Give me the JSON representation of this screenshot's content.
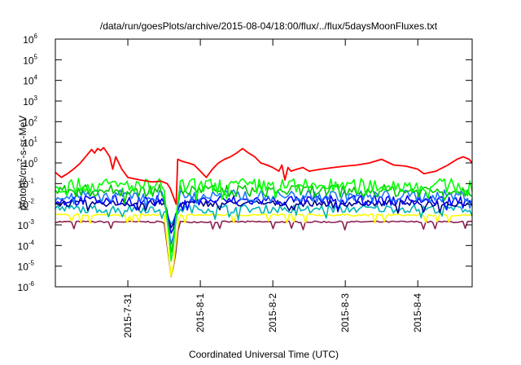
{
  "chart_data": {
    "type": "line",
    "title": "/data/run/goesPlots/archive/2015-08-04/18:00/flux/../flux/5daysMoonFluxes.txt",
    "xlabel": "Coordinated Universal Time (UTC)",
    "ylabel": {
      "prefix": "protons/cm",
      "sup": "2",
      "suffix": "-s-sr-MeV"
    },
    "y_scale": "log",
    "ylim": [
      1e-06,
      1000000.0
    ],
    "y_ticks": [
      {
        "value": 1e-06,
        "base": "10",
        "exp": "-6"
      },
      {
        "value": 1e-05,
        "base": "10",
        "exp": "-5"
      },
      {
        "value": 0.0001,
        "base": "10",
        "exp": "-4"
      },
      {
        "value": 0.001,
        "base": "10",
        "exp": "-3"
      },
      {
        "value": 0.01,
        "base": "10",
        "exp": "-2"
      },
      {
        "value": 0.1,
        "base": "10",
        "exp": "-1"
      },
      {
        "value": 1,
        "base": "10",
        "exp": "0"
      },
      {
        "value": 10,
        "base": "10",
        "exp": "1"
      },
      {
        "value": 100,
        "base": "10",
        "exp": "2"
      },
      {
        "value": 1000,
        "base": "10",
        "exp": "3"
      },
      {
        "value": 10000,
        "base": "10",
        "exp": "4"
      },
      {
        "value": 100000,
        "base": "10",
        "exp": "5"
      },
      {
        "value": 1000000,
        "base": "10",
        "exp": "6"
      }
    ],
    "xlim": [
      "2015-07-30T00:00",
      "2015-08-04T18:00"
    ],
    "x_ticks": [
      {
        "value": "2015-07-31T00:00",
        "label": "2015-7-31"
      },
      {
        "value": "2015-08-01T00:00",
        "label": "2015-8-1"
      },
      {
        "value": "2015-08-02T00:00",
        "label": "2015-8-2"
      },
      {
        "value": "2015-08-03T00:00",
        "label": "2015-8-3"
      },
      {
        "value": "2015-08-04T00:00",
        "label": "2015-8-4"
      }
    ],
    "grid": false,
    "legend": "none",
    "dip": {
      "x": "2015-07-31T14:30",
      "min": [
        1e-05,
        3e-05,
        8e-05,
        0.0003,
        0.0006,
        0.001,
        2e-06
      ]
    },
    "series": [
      {
        "color": "#ff0000",
        "values": [
          [
            "2015-07-30T00:00",
            0.35
          ],
          [
            "2015-07-30T02:00",
            0.2
          ],
          [
            "2015-07-30T04:00",
            0.3
          ],
          [
            "2015-07-30T06:00",
            0.5
          ],
          [
            "2015-07-30T08:00",
            0.9
          ],
          [
            "2015-07-30T10:00",
            2.0
          ],
          [
            "2015-07-30T12:00",
            4.5
          ],
          [
            "2015-07-30T13:00",
            3.0
          ],
          [
            "2015-07-30T14:00",
            5.0
          ],
          [
            "2015-07-30T15:00",
            4.0
          ],
          [
            "2015-07-30T16:00",
            5.5
          ],
          [
            "2015-07-30T18:00",
            2.0
          ],
          [
            "2015-07-30T19:00",
            0.5
          ],
          [
            "2015-07-30T20:00",
            2.0
          ],
          [
            "2015-07-30T22:00",
            0.5
          ],
          [
            "2015-07-31T00:00",
            0.2
          ],
          [
            "2015-07-31T04:00",
            0.15
          ],
          [
            "2015-07-31T08:00",
            0.12
          ],
          [
            "2015-07-31T11:00",
            0.13
          ],
          [
            "2015-07-31T13:00",
            0.1
          ],
          [
            "2015-07-31T14:00",
            0.06
          ],
          [
            "2015-07-31T16:00",
            0.01
          ],
          [
            "2015-07-31T16:30",
            1.5
          ],
          [
            "2015-07-31T18:00",
            1.2
          ],
          [
            "2015-07-31T20:00",
            1.0
          ],
          [
            "2015-07-31T22:00",
            0.8
          ],
          [
            "2015-08-01T00:00",
            0.4
          ],
          [
            "2015-08-01T02:00",
            0.2
          ],
          [
            "2015-08-01T04:00",
            0.5
          ],
          [
            "2015-08-01T06:00",
            1.0
          ],
          [
            "2015-08-01T08:00",
            1.5
          ],
          [
            "2015-08-01T10:00",
            2.0
          ],
          [
            "2015-08-01T12:00",
            3.0
          ],
          [
            "2015-08-01T14:00",
            5.0
          ],
          [
            "2015-08-01T16:00",
            3.0
          ],
          [
            "2015-08-01T18:00",
            2.0
          ],
          [
            "2015-08-01T20:00",
            1.0
          ],
          [
            "2015-08-01T22:00",
            0.8
          ],
          [
            "2015-08-02T00:00",
            0.6
          ],
          [
            "2015-08-02T02:00",
            0.4
          ],
          [
            "2015-08-02T03:00",
            0.8
          ],
          [
            "2015-08-02T04:00",
            0.15
          ],
          [
            "2015-08-02T05:00",
            0.6
          ],
          [
            "2015-08-02T06:00",
            0.4
          ],
          [
            "2015-08-02T08:00",
            0.5
          ],
          [
            "2015-08-02T10:00",
            0.6
          ],
          [
            "2015-08-02T12:00",
            0.4
          ],
          [
            "2015-08-02T16:00",
            0.5
          ],
          [
            "2015-08-02T20:00",
            0.6
          ],
          [
            "2015-08-03T00:00",
            0.7
          ],
          [
            "2015-08-03T04:00",
            0.8
          ],
          [
            "2015-08-03T08:00",
            1.0
          ],
          [
            "2015-08-03T12:00",
            1.5
          ],
          [
            "2015-08-03T16:00",
            0.8
          ],
          [
            "2015-08-03T20:00",
            0.7
          ],
          [
            "2015-08-04T00:00",
            0.5
          ],
          [
            "2015-08-04T02:00",
            0.3
          ],
          [
            "2015-08-04T06:00",
            0.4
          ],
          [
            "2015-08-04T10:00",
            0.8
          ],
          [
            "2015-08-04T13:00",
            1.5
          ],
          [
            "2015-08-04T15:00",
            2.0
          ],
          [
            "2015-08-04T17:00",
            1.5
          ],
          [
            "2015-08-04T18:00",
            1.0
          ]
        ]
      },
      {
        "color": "#00ff00",
        "base": 0.08,
        "amp": 0.35
      },
      {
        "color": "#00c800",
        "base": 0.045,
        "amp": 0.3
      },
      {
        "color": "#1e78ff",
        "base": 0.025,
        "amp": 0.3
      },
      {
        "color": "#0000ff",
        "base": 0.015,
        "amp": 0.25
      },
      {
        "color": "#00008b",
        "base": 0.011,
        "amp": 0.15
      },
      {
        "color": "#00b4b4",
        "base": 0.006,
        "amp": 0.2
      },
      {
        "color": "#ffff00",
        "base": 0.003,
        "amp": 0.05
      },
      {
        "color": "#8b2252",
        "base": 0.0014,
        "amp": 0.04
      }
    ]
  }
}
